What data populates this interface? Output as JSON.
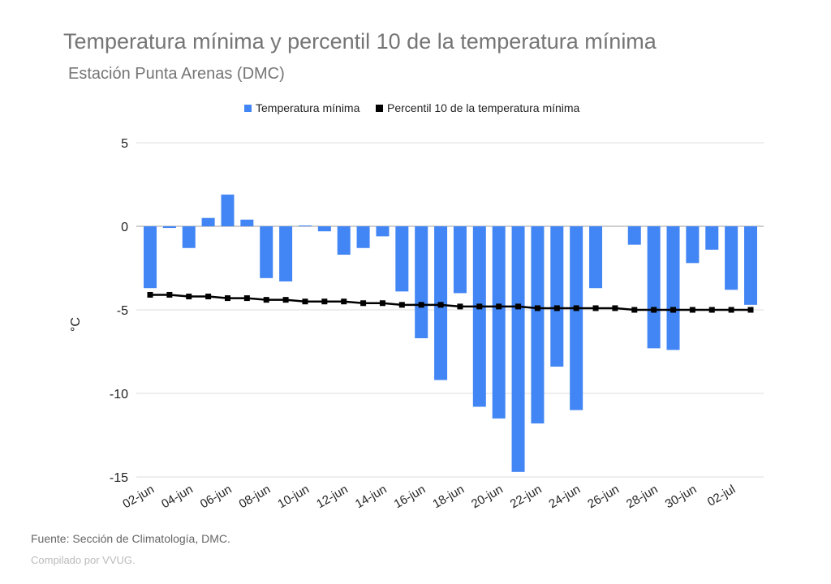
{
  "title": "Temperatura mínima y percentil 10 de la temperatura mínima",
  "subtitle": "Estación Punta Arenas (DMC)",
  "source": "Fuente: Sección de Climatología, DMC.",
  "compiled": "Compilado por VVUG.",
  "chart_data": {
    "type": "bar",
    "ylabel": "°C",
    "ylim": [
      -15,
      5
    ],
    "yticks": [
      5,
      0,
      -5,
      -10,
      -15
    ],
    "grid": true,
    "legend_placement": "top",
    "categories": [
      "02-jun",
      "03-jun",
      "04-jun",
      "05-jun",
      "06-jun",
      "07-jun",
      "08-jun",
      "09-jun",
      "10-jun",
      "11-jun",
      "12-jun",
      "13-jun",
      "14-jun",
      "15-jun",
      "16-jun",
      "17-jun",
      "18-jun",
      "19-jun",
      "20-jun",
      "21-jun",
      "22-jun",
      "23-jun",
      "24-jun",
      "25-jun",
      "26-jun",
      "27-jun",
      "28-jun",
      "29-jun",
      "30-jun",
      "01-jul",
      "02-jul",
      "03-jul"
    ],
    "xticks": [
      "02-jun",
      "04-jun",
      "06-jun",
      "08-jun",
      "10-jun",
      "12-jun",
      "14-jun",
      "16-jun",
      "18-jun",
      "20-jun",
      "22-jun",
      "24-jun",
      "26-jun",
      "28-jun",
      "30-jun",
      "02-jul"
    ],
    "series": [
      {
        "name": "Temperatura mínima",
        "kind": "bar",
        "color": "#4285f4",
        "values": [
          -3.7,
          -0.1,
          -1.3,
          0.5,
          1.9,
          0.4,
          -3.1,
          -3.3,
          0.05,
          -0.3,
          -1.7,
          -1.3,
          -0.6,
          -3.9,
          -6.7,
          -9.2,
          -4.0,
          -10.8,
          -11.5,
          -14.7,
          -11.8,
          -8.4,
          -11.0,
          -3.7,
          null,
          -1.1,
          -7.3,
          -7.4,
          -2.2,
          -1.4,
          -3.8,
          -4.7
        ]
      },
      {
        "name": "Percentil 10 de la temperatura mínima",
        "kind": "line",
        "color": "#000000",
        "values": [
          -4.1,
          -4.1,
          -4.2,
          -4.2,
          -4.3,
          -4.3,
          -4.4,
          -4.4,
          -4.5,
          -4.5,
          -4.5,
          -4.6,
          -4.6,
          -4.7,
          -4.7,
          -4.7,
          -4.8,
          -4.8,
          -4.8,
          -4.8,
          -4.9,
          -4.9,
          -4.9,
          -4.9,
          -4.9,
          -5.0,
          -5.0,
          -5.0,
          -5.0,
          -5.0,
          -5.0,
          -5.0
        ]
      }
    ]
  }
}
